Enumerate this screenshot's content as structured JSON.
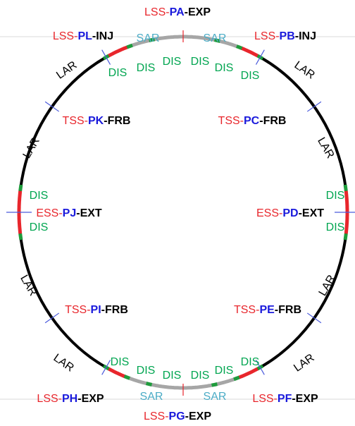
{
  "stations": [
    {
      "prefix": "LSS-",
      "code": "PA",
      "suffix": "-EXP"
    },
    {
      "prefix": "LSS-",
      "code": "PL",
      "suffix": "-INJ"
    },
    {
      "prefix": "LSS-",
      "code": "PB",
      "suffix": "-INJ"
    },
    {
      "prefix": "TSS-",
      "code": "PK",
      "suffix": "-FRB"
    },
    {
      "prefix": "TSS-",
      "code": "PC",
      "suffix": "-FRB"
    },
    {
      "prefix": "ESS-",
      "code": "PJ",
      "suffix": "-EXT"
    },
    {
      "prefix": "ESS-",
      "code": "PD",
      "suffix": "-EXT"
    },
    {
      "prefix": "TSS-",
      "code": "PI",
      "suffix": "-FRB"
    },
    {
      "prefix": "TSS-",
      "code": "PE",
      "suffix": "-FRB"
    },
    {
      "prefix": "LSS-",
      "code": "PH",
      "suffix": "-EXP"
    },
    {
      "prefix": "LSS-",
      "code": "PF",
      "suffix": "-EXP"
    },
    {
      "prefix": "LSS-",
      "code": "PG",
      "suffix": "-EXP"
    }
  ],
  "sar_labels": [
    "SAR",
    "SAR",
    "SAR",
    "SAR"
  ],
  "lar_labels": [
    "LAR",
    "LAR",
    "LAR",
    "LAR",
    "LAR",
    "LAR",
    "LAR",
    "LAR"
  ],
  "dis_labels": [
    "DIS",
    "DIS",
    "DIS",
    "DIS",
    "DIS",
    "DIS",
    "DIS",
    "DIS",
    "DIS",
    "DIS",
    "DIS",
    "DIS",
    "DIS",
    "DIS",
    "DIS",
    "DIS"
  ]
}
